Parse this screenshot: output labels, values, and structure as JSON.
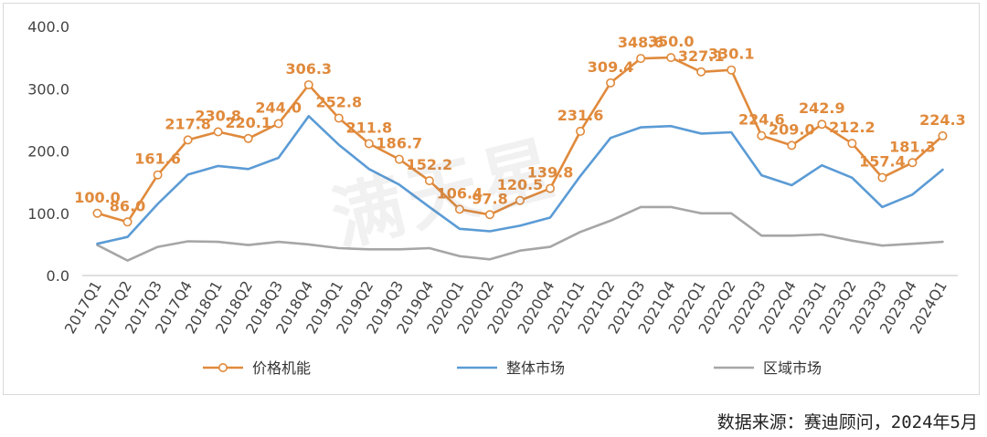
{
  "chart_data": {
    "type": "line",
    "title": "",
    "xlabel": "",
    "ylabel": "",
    "ylim": [
      0,
      400
    ],
    "yticks": [
      "0.0",
      "100.0",
      "200.0",
      "300.0",
      "400.0"
    ],
    "grid": false,
    "legend_position": "bottom",
    "categories": [
      "2017Q1",
      "2017Q2",
      "2017Q3",
      "2017Q4",
      "2018Q1",
      "2018Q2",
      "2018Q3",
      "2018Q4",
      "2019Q1",
      "2019Q2",
      "2019Q3",
      "2019Q4",
      "2020Q1",
      "2020Q2",
      "2020Q3",
      "2020Q4",
      "2021Q1",
      "2021Q2",
      "2021Q3",
      "2021Q4",
      "2022Q1",
      "2022Q2",
      "2022Q3",
      "2022Q4",
      "2023Q1",
      "2023Q2",
      "2023Q3",
      "2023Q4",
      "2024Q1"
    ],
    "series": [
      {
        "name": "价格机能",
        "color": "#e08a3c",
        "markers": true,
        "data_labels": true,
        "values": [
          100.0,
          86.0,
          161.6,
          217.8,
          230.8,
          220.1,
          244.0,
          306.3,
          252.8,
          211.8,
          186.7,
          152.2,
          106.4,
          97.8,
          120.5,
          139.8,
          231.6,
          309.4,
          348.6,
          350.0,
          327.1,
          330.1,
          224.6,
          209.0,
          242.9,
          212.2,
          157.4,
          181.3,
          224.3
        ],
        "labels": [
          "100.0",
          "86.0",
          "161.6",
          "217.8",
          "230.8",
          "220.1",
          "244.0",
          "306.3",
          "252.8",
          "211.8",
          "186.7",
          "152.2",
          "106.4",
          "97.8",
          "120.5",
          "139.8",
          "231.6",
          "309.4",
          "348.6",
          "350.0",
          "327.1",
          "330.1",
          "224.6",
          "209.0",
          "242.9",
          "212.2",
          "157.4",
          "181.3",
          "224.3"
        ]
      },
      {
        "name": "整体市场",
        "color": "#5b9bd5",
        "markers": false,
        "data_labels": false,
        "values": [
          51,
          62,
          115,
          162,
          176,
          171,
          189,
          256,
          210,
          171,
          146,
          110,
          75,
          71,
          80,
          93,
          160,
          221,
          238,
          240,
          228,
          230,
          161,
          145,
          177,
          157,
          110,
          130,
          170
        ]
      },
      {
        "name": "区域市场",
        "color": "#a6a6a6",
        "markers": false,
        "data_labels": false,
        "values": [
          49,
          24,
          46,
          55,
          54,
          49,
          54,
          50,
          44,
          42,
          42,
          44,
          31,
          26,
          40,
          46,
          70,
          88,
          110,
          110,
          100,
          100,
          64,
          64,
          66,
          56,
          48,
          51,
          54
        ]
      }
    ]
  },
  "watermark": "满天星",
  "source_note": "数据来源：赛迪顾问，2024年5月"
}
